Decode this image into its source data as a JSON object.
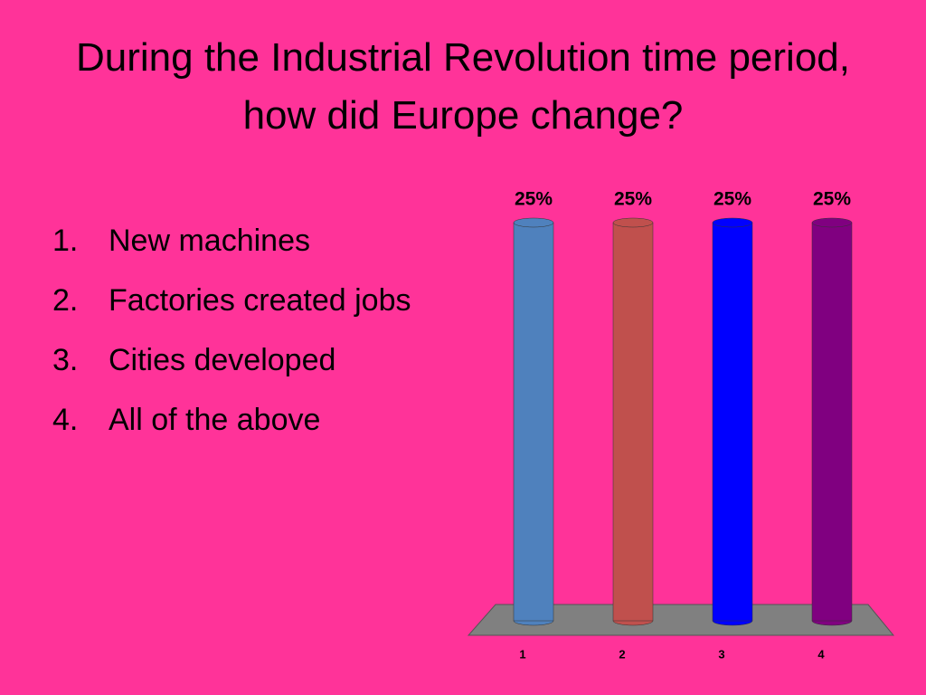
{
  "title": "During the Industrial Revolution time period, how did Europe change?",
  "list": [
    {
      "number": "1.",
      "text": "New machines"
    },
    {
      "number": "2.",
      "text": "Factories created jobs"
    },
    {
      "number": "3.",
      "text": "Cities developed"
    },
    {
      "number": "4.",
      "text": "All of the above"
    }
  ],
  "chart_data": {
    "type": "bar",
    "categories": [
      "1",
      "2",
      "3",
      "4"
    ],
    "values": [
      25,
      25,
      25,
      25
    ],
    "value_labels": [
      "25%",
      "25%",
      "25%",
      "25%"
    ],
    "colors": [
      "#4f81bd",
      "#c0504d",
      "#0000ff",
      "#800080"
    ]
  }
}
